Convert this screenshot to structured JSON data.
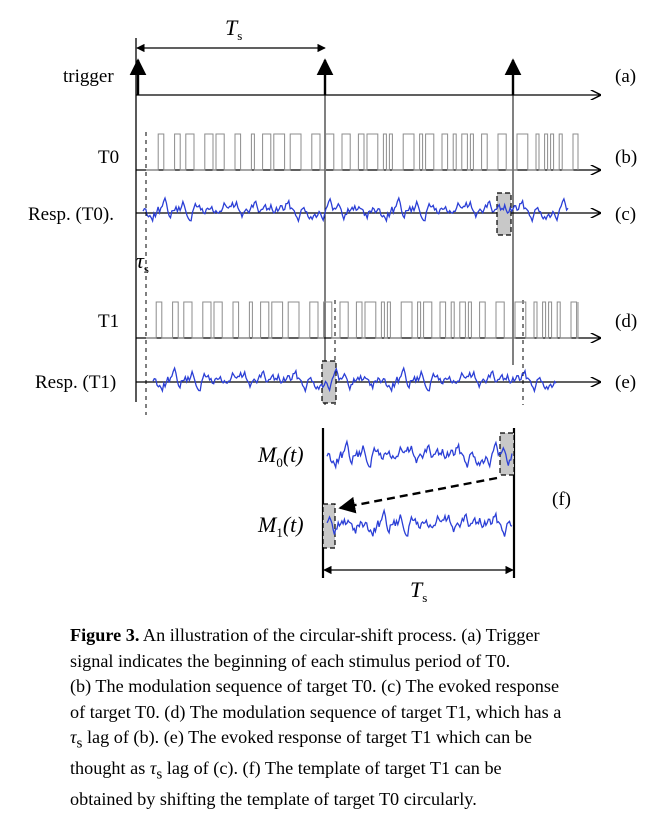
{
  "figure": {
    "labels": {
      "trigger": "trigger",
      "t0": "T0",
      "resp_t0": "Resp. (T0).",
      "t1": "T1",
      "resp_t1": "Resp. (T1)",
      "ts_top": "T",
      "ts_top_sub": "s",
      "tau": "τ",
      "tau_sub": "s",
      "m0": "M",
      "m0_sub": "0",
      "m0_arg": "(t)",
      "m1": "M",
      "m1_sub": "1",
      "m1_arg": "(t)",
      "ts_bottom": "T",
      "ts_bottom_sub": "s"
    },
    "panel_letters": {
      "a": "(a)",
      "b": "(b)",
      "c": "(c)",
      "d": "(d)",
      "e": "(e)",
      "f": "(f)"
    },
    "colors": {
      "signal": "#2b3fd6",
      "axis": "#000000",
      "pulse": "#8c8c8c",
      "highlight_fill": "#c8c8c8"
    }
  },
  "caption": {
    "label": "Figure 3.",
    "line1": " An illustration of the circular-shift process. (a) Trigger",
    "line2": "signal indicates the beginning of each stimulus period of T0.",
    "line3": "(b) The modulation sequence of target T0. (c) The evoked response",
    "line4a": "of target T0. (d) The modulation sequence of target T1, which has a",
    "line5a": "τ",
    "line5sub": "s",
    "line5b": " lag of (b). (e) The evoked response of target T1 which can be",
    "line6a": "thought as ",
    "line6tau": "τ",
    "line6sub": "s",
    "line6b": " lag of (c). (f) The template of target T1 can be",
    "line7": "obtained by shifting the template of target T0 circularly."
  }
}
